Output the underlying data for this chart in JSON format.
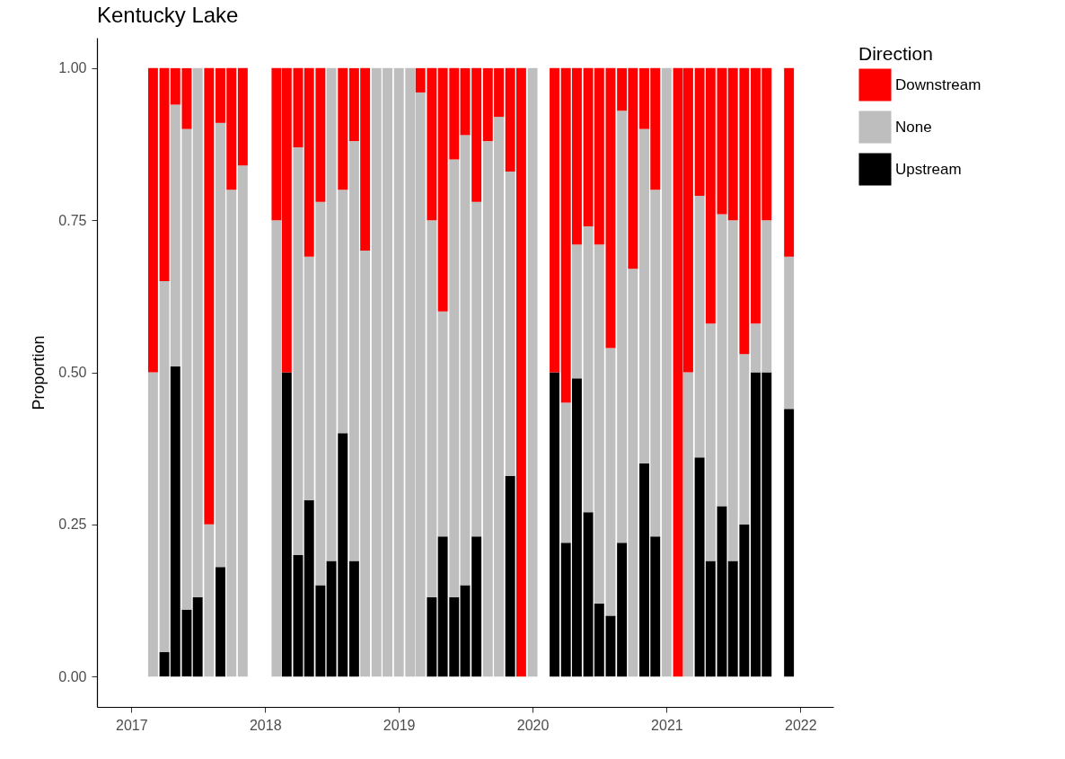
{
  "chart_data": {
    "type": "bar",
    "stacked": true,
    "title": "Kentucky Lake",
    "ylabel": "Proportion",
    "legend_title": "Direction",
    "legend": "right",
    "grid": false,
    "x": [
      "2017-03",
      "2017-04",
      "2017-05",
      "2017-06",
      "2017-07",
      "2017-08",
      "2017-09",
      "2017-10",
      "2017-11",
      "2018-02",
      "2018-03",
      "2018-04",
      "2018-05",
      "2018-06",
      "2018-07",
      "2018-08",
      "2018-09",
      "2018-10",
      "2018-11",
      "2018-12",
      "2019-01",
      "2019-02",
      "2019-03",
      "2019-04",
      "2019-05",
      "2019-06",
      "2019-07",
      "2019-08",
      "2019-09",
      "2019-10",
      "2019-11",
      "2019-12",
      "2020-01",
      "2020-03",
      "2020-04",
      "2020-05",
      "2020-06",
      "2020-07",
      "2020-08",
      "2020-09",
      "2020-10",
      "2020-11",
      "2020-12",
      "2021-01",
      "2021-02",
      "2021-03",
      "2021-04",
      "2021-05",
      "2021-06",
      "2021-07",
      "2021-08",
      "2021-09",
      "2021-10",
      "2021-12"
    ],
    "series": [
      {
        "name": "Upstream",
        "color": "#000000",
        "values": [
          0,
          0.04,
          0.51,
          0.11,
          0.13,
          0,
          0.18,
          0,
          0,
          0,
          0.5,
          0.2,
          0.29,
          0.15,
          0.19,
          0.4,
          0.19,
          0,
          0,
          0,
          0,
          0,
          0,
          0.13,
          0.23,
          0.13,
          0.15,
          0.23,
          0,
          0,
          0.33,
          0,
          0,
          0.5,
          0.22,
          0.49,
          0.27,
          0.12,
          0.1,
          0.22,
          0,
          0.35,
          0.23,
          0,
          0,
          0,
          0.36,
          0.19,
          0.28,
          0.19,
          0.25,
          0.5,
          0.5,
          0.44
        ]
      },
      {
        "name": "None",
        "color": "#bebebe",
        "values": [
          0.5,
          0.61,
          0.43,
          0.79,
          0.87,
          0.25,
          0.73,
          0.8,
          0.84,
          0.75,
          0,
          0.67,
          0.4,
          0.63,
          0.81,
          0.4,
          0.69,
          0.7,
          1,
          1,
          1,
          1,
          0.96,
          0.62,
          0.37,
          0.72,
          0.74,
          0.55,
          0.88,
          0.92,
          0.5,
          0,
          1,
          0,
          0.23,
          0.22,
          0.47,
          0.59,
          0.44,
          0.71,
          0.67,
          0.55,
          0.57,
          1,
          0,
          0.5,
          0.43,
          0.39,
          0.48,
          0.56,
          0.28,
          0.08,
          0.25,
          0.25
        ]
      },
      {
        "name": "Downstream",
        "color": "#ff0000",
        "values": [
          0.5,
          0.35,
          0.06,
          0.1,
          0,
          0.75,
          0.09,
          0.2,
          0.16,
          0.25,
          0.5,
          0.13,
          0.31,
          0.22,
          0,
          0.2,
          0.12,
          0.3,
          0,
          0,
          0,
          0,
          0.04,
          0.25,
          0.4,
          0.15,
          0.11,
          0.22,
          0.12,
          0.08,
          0.17,
          1,
          0,
          0.5,
          0.55,
          0.29,
          0.26,
          0.29,
          0.46,
          0.07,
          0.33,
          0.1,
          0.2,
          0,
          1,
          0.5,
          0.21,
          0.42,
          0.24,
          0.25,
          0.47,
          0.42,
          0.25,
          0.31
        ]
      }
    ],
    "xlim": [
      "2016-09-29",
      "2022-04-01"
    ],
    "xticks": [
      "2017",
      "2018",
      "2019",
      "2020",
      "2021",
      "2022"
    ],
    "ylim": [
      -0.05,
      1.05
    ],
    "yticks": [
      {
        "value": 0,
        "label": "0.00"
      },
      {
        "value": 0.25,
        "label": "0.25"
      },
      {
        "value": 0.5,
        "label": "0.50"
      },
      {
        "value": 0.75,
        "label": "0.75"
      },
      {
        "value": 1,
        "label": "1.00"
      }
    ]
  }
}
